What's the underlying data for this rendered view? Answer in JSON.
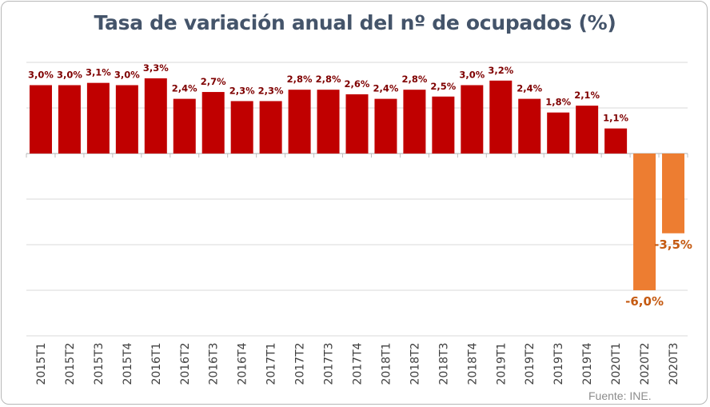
{
  "chart_data": {
    "type": "bar",
    "title": "Tasa de variación anual del nº de ocupados (%)",
    "source": "Fuente: INE.",
    "categories": [
      "2015T1",
      "2015T2",
      "2015T3",
      "2015T4",
      "2016T1",
      "2016T2",
      "2016T3",
      "2016T4",
      "2017T1",
      "2017T2",
      "2017T3",
      "2017T4",
      "2018T1",
      "2018T2",
      "2018T3",
      "2018T4",
      "2019T1",
      "2019T2",
      "2019T3",
      "2019T4",
      "2020T1",
      "2020T2",
      "2020T3"
    ],
    "values": [
      3.0,
      3.0,
      3.1,
      3.0,
      3.3,
      2.4,
      2.7,
      2.3,
      2.3,
      2.8,
      2.8,
      2.6,
      2.4,
      2.8,
      2.5,
      3.0,
      3.2,
      2.4,
      1.8,
      2.1,
      1.1,
      -6.0,
      -3.5
    ],
    "data_labels": [
      "3,0%",
      "3,0%",
      "3,1%",
      "3,0%",
      "3,3%",
      "2,4%",
      "2,7%",
      "2,3%",
      "2,3%",
      "2,8%",
      "2,8%",
      "2,6%",
      "2,4%",
      "2,8%",
      "2,5%",
      "3,0%",
      "3,2%",
      "2,4%",
      "1,8%",
      "2,1%",
      "1,1%",
      "-6,0%",
      "-3,5%"
    ],
    "ylim": [
      -8,
      4
    ],
    "grid": true,
    "legend": "none",
    "colors": {
      "positive": "#c00000",
      "negative": "#ed7d31",
      "positive_label": "#7f0000",
      "negative_label": "#c55a11",
      "title": "#44546a",
      "grid": "#d9d9d9"
    }
  }
}
